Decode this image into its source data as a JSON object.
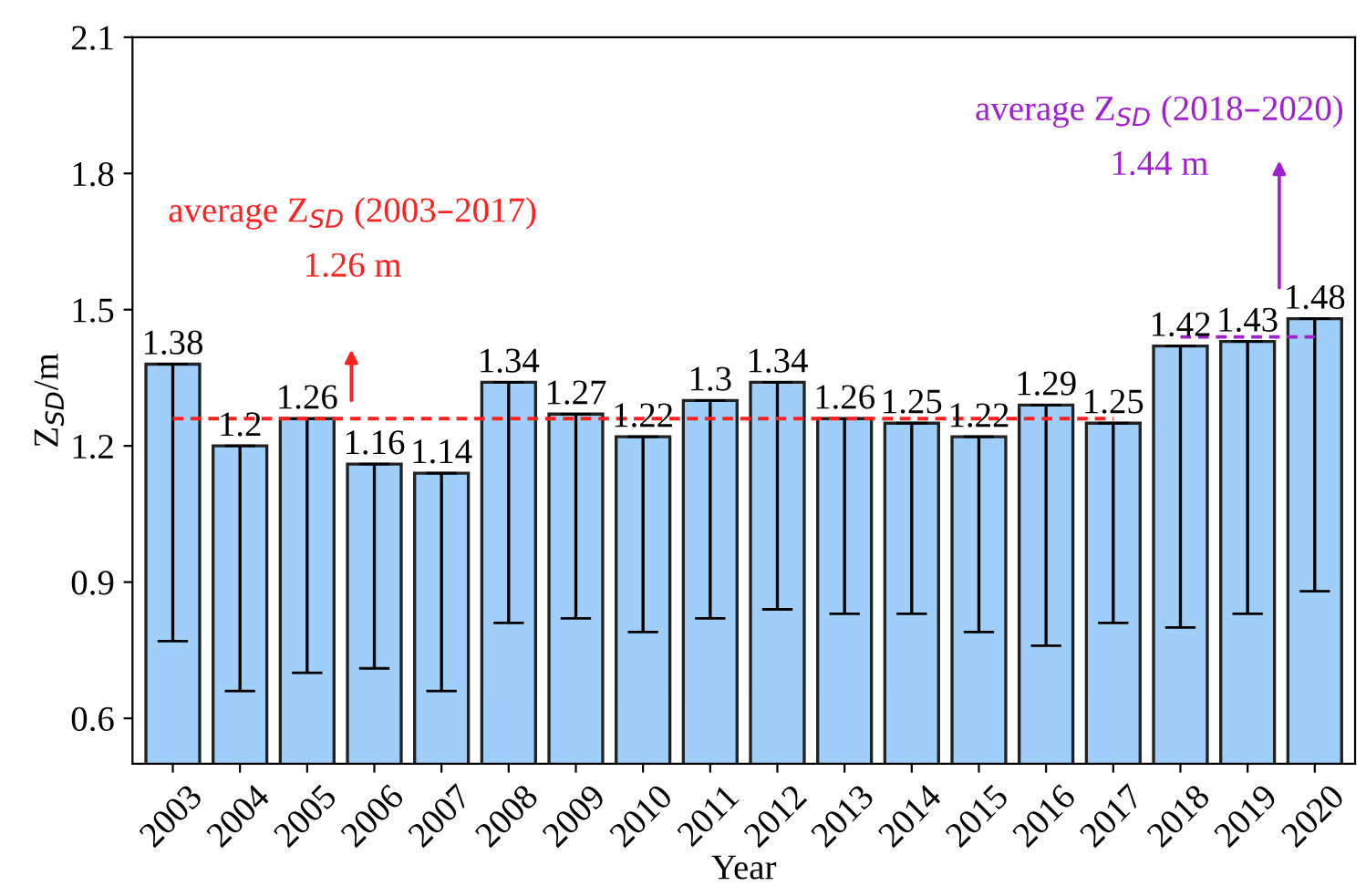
{
  "chart_data": {
    "type": "bar",
    "xlabel": "Year",
    "ylabel": "Z$_{SD}$/m",
    "categories": [
      "2003",
      "2004",
      "2005",
      "2006",
      "2007",
      "2008",
      "2009",
      "2010",
      "2011",
      "2012",
      "2013",
      "2014",
      "2015",
      "2016",
      "2017",
      "2018",
      "2019",
      "2020"
    ],
    "values": [
      1.38,
      1.2,
      1.26,
      1.16,
      1.14,
      1.34,
      1.27,
      1.22,
      1.3,
      1.34,
      1.26,
      1.25,
      1.22,
      1.29,
      1.25,
      1.42,
      1.43,
      1.48
    ],
    "value_labels": [
      "1.38",
      "1.2",
      "1.26",
      "1.16",
      "1.14",
      "1.34",
      "1.27",
      "1.22",
      "1.3",
      "1.34",
      "1.26",
      "1.25",
      "1.22",
      "1.29",
      "1.25",
      "1.42",
      "1.43",
      "1.48"
    ],
    "errors": [
      [
        0.77,
        1.38
      ],
      [
        0.66,
        1.2
      ],
      [
        0.7,
        1.26
      ],
      [
        0.71,
        1.16
      ],
      [
        0.66,
        1.14
      ],
      [
        0.81,
        1.34
      ],
      [
        0.82,
        1.27
      ],
      [
        0.79,
        1.22
      ],
      [
        0.82,
        1.3
      ],
      [
        0.84,
        1.34
      ],
      [
        0.83,
        1.26
      ],
      [
        0.83,
        1.25
      ],
      [
        0.79,
        1.22
      ],
      [
        0.76,
        1.29
      ],
      [
        0.81,
        1.25
      ],
      [
        0.8,
        1.42
      ],
      [
        0.83,
        1.43
      ],
      [
        0.88,
        1.48
      ]
    ],
    "color": "#9fcff8",
    "series": [
      {
        "type": "line",
        "color": "#ff2020",
        "line_style": "dashed",
        "values": [
          1.26,
          1.26,
          1.26,
          1.26,
          1.26,
          1.26,
          1.26,
          1.26,
          1.26,
          1.26,
          1.26,
          1.26,
          1.26,
          1.26,
          1.26,
          null,
          null,
          null
        ]
      },
      {
        "type": "line",
        "color": "#a020d0",
        "line_style": "dashed",
        "values": [
          null,
          null,
          null,
          null,
          null,
          null,
          null,
          null,
          null,
          null,
          null,
          null,
          null,
          null,
          null,
          1.44,
          1.44,
          1.44
        ]
      }
    ],
    "annotations": [
      "average Z$_{SD}$ (2003–2017)\n1.26 m",
      "average Z$_{SD}$ (2018–2020)\n1.44 m"
    ],
    "ylim": [
      0.5,
      2.1
    ],
    "yticks": [
      0.6,
      0.9,
      1.2,
      1.5,
      1.8,
      2.1
    ],
    "grid": false,
    "marker": "none",
    "legend": false
  }
}
